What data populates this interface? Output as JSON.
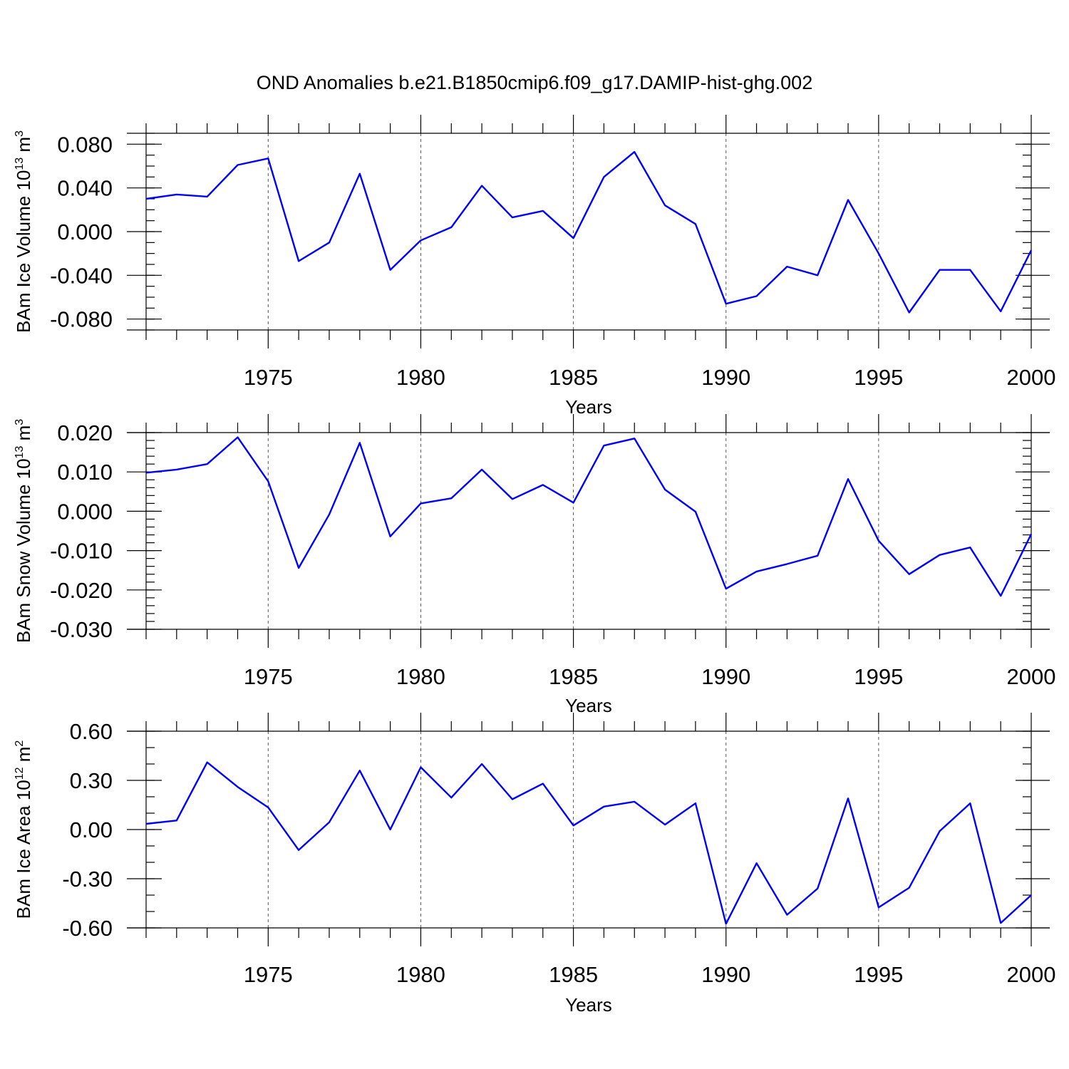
{
  "figure_title": "OND Anomalies b.e21.B1850cmip6.f09_g17.DAMIP-hist-ghg.002",
  "colors": {
    "line": "#0000ff",
    "axes": "#000000",
    "grid": "#555555"
  },
  "chart_data": [
    {
      "type": "line",
      "ylabel": "BAm Ice Volume 10",
      "ylabel_exponent": "13",
      "ylabel_unit": "m",
      "ylabel_unit_exponent": "3",
      "xlabel": "Years",
      "x": [
        1971,
        1972,
        1973,
        1974,
        1975,
        1976,
        1977,
        1978,
        1979,
        1980,
        1981,
        1982,
        1983,
        1984,
        1985,
        1986,
        1987,
        1988,
        1989,
        1990,
        1991,
        1992,
        1993,
        1994,
        1995,
        1996,
        1997,
        1998,
        1999,
        2000
      ],
      "series": [
        {
          "values": [
            0.03,
            0.034,
            0.032,
            0.061,
            0.067,
            -0.027,
            -0.01,
            0.053,
            -0.035,
            -0.008,
            0.004,
            0.042,
            0.013,
            0.019,
            -0.006,
            0.05,
            0.073,
            0.024,
            0.007,
            -0.066,
            -0.059,
            -0.032,
            -0.04,
            0.029,
            -0.02,
            -0.074,
            -0.035,
            -0.035,
            -0.073,
            -0.017
          ]
        }
      ],
      "xlim": [
        1971,
        2000
      ],
      "ylim": [
        -0.09,
        0.09
      ],
      "x_ticks": [
        1975,
        1980,
        1985,
        1990,
        1995,
        2000
      ],
      "x_tick_labels": [
        "1975",
        "1980",
        "1985",
        "1990",
        "1995",
        "2000"
      ],
      "y_ticks": [
        -0.08,
        -0.04,
        0.0,
        0.04,
        0.08
      ],
      "y_tick_labels": [
        "-0.080",
        "-0.040",
        "0.000",
        "0.040",
        "0.080"
      ],
      "y_minor_step": 0.01,
      "grid": "vertical dashed at major x ticks",
      "legend": "none"
    },
    {
      "type": "line",
      "ylabel": "BAm Snow Volume 10",
      "ylabel_exponent": "13",
      "ylabel_unit": "m",
      "ylabel_unit_exponent": "3",
      "xlabel": "Years",
      "x": [
        1971,
        1972,
        1973,
        1974,
        1975,
        1976,
        1977,
        1978,
        1979,
        1980,
        1981,
        1982,
        1983,
        1984,
        1985,
        1986,
        1987,
        1988,
        1989,
        1990,
        1991,
        1992,
        1993,
        1994,
        1995,
        1996,
        1997,
        1998,
        1999,
        2000
      ],
      "series": [
        {
          "values": [
            0.0098,
            0.0106,
            0.012,
            0.0188,
            0.0076,
            -0.0144,
            -0.0008,
            0.0174,
            -0.0064,
            0.002,
            0.0033,
            0.0106,
            0.0031,
            0.0067,
            0.0022,
            0.0167,
            0.0185,
            0.0055,
            -0.0001,
            -0.0197,
            -0.0153,
            -0.0134,
            -0.0113,
            0.0082,
            -0.0075,
            -0.016,
            -0.0111,
            -0.0092,
            -0.0215,
            -0.0058
          ]
        }
      ],
      "xlim": [
        1971,
        2000
      ],
      "ylim": [
        -0.03,
        0.02
      ],
      "x_ticks": [
        1975,
        1980,
        1985,
        1990,
        1995,
        2000
      ],
      "x_tick_labels": [
        "1975",
        "1980",
        "1985",
        "1990",
        "1995",
        "2000"
      ],
      "y_ticks": [
        -0.03,
        -0.02,
        -0.01,
        0.0,
        0.01,
        0.02
      ],
      "y_tick_labels": [
        "-0.030",
        "-0.020",
        "-0.010",
        "0.000",
        "0.010",
        "0.020"
      ],
      "y_minor_step": 0.002,
      "grid": "vertical dashed at major x ticks",
      "legend": "none"
    },
    {
      "type": "line",
      "ylabel": "BAm Ice Area 10",
      "ylabel_exponent": "12",
      "ylabel_unit": "m",
      "ylabel_unit_exponent": "2",
      "xlabel": "Years",
      "x": [
        1971,
        1972,
        1973,
        1974,
        1975,
        1976,
        1977,
        1978,
        1979,
        1980,
        1981,
        1982,
        1983,
        1984,
        1985,
        1986,
        1987,
        1988,
        1989,
        1990,
        1991,
        1992,
        1993,
        1994,
        1995,
        1996,
        1997,
        1998,
        1999,
        2000
      ],
      "series": [
        {
          "values": [
            0.035,
            0.055,
            0.41,
            0.26,
            0.135,
            -0.125,
            0.045,
            0.36,
            0.0,
            0.38,
            0.195,
            0.4,
            0.185,
            0.28,
            0.025,
            0.14,
            0.17,
            0.03,
            0.16,
            -0.575,
            -0.205,
            -0.52,
            -0.36,
            0.19,
            -0.475,
            -0.355,
            -0.01,
            0.16,
            -0.57,
            -0.4
          ]
        }
      ],
      "xlim": [
        1971,
        2000
      ],
      "ylim": [
        -0.6,
        0.6
      ],
      "x_ticks": [
        1975,
        1980,
        1985,
        1990,
        1995,
        2000
      ],
      "x_tick_labels": [
        "1975",
        "1980",
        "1985",
        "1990",
        "1995",
        "2000"
      ],
      "y_ticks": [
        -0.6,
        -0.3,
        0.0,
        0.3,
        0.6
      ],
      "y_tick_labels": [
        "-0.60",
        "-0.30",
        "0.00",
        "0.30",
        "0.60"
      ],
      "y_minor_step": 0.1,
      "grid": "vertical dashed at major x ticks",
      "legend": "none"
    }
  ]
}
